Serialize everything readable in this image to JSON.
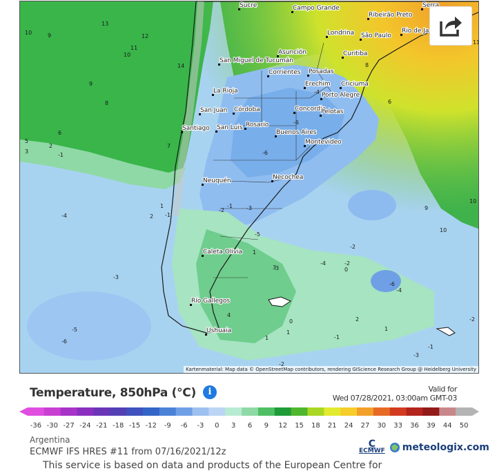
{
  "map": {
    "attribution": "Kartenmaterial: Map data © OpenStreetMap contributors, rendering GIScience Research Group @ Heidelberg University",
    "cities": [
      "Sucre",
      "Campo Grande",
      "Ribeirão Preto",
      "Serra",
      "Londrina",
      "São Paulo",
      "Rio de Ja",
      "Curitiba",
      "Asunción",
      "San Miguel de Tucumán",
      "Corrientes",
      "Posadas",
      "Erechim",
      "Criciuma",
      "Porto Alegre",
      "La Rioja",
      "San Juan",
      "Córdoba",
      "Concordia",
      "Pelotas",
      "Santiago",
      "San Luis",
      "Rosario",
      "Buenos Aires",
      "Montevideo",
      "Neuquén",
      "Necochea",
      "Caleta Olivia",
      "Río Gallegos",
      "Ushuaia"
    ],
    "isotherm_labels": [
      "13",
      "12",
      "11",
      "10",
      "10",
      "9",
      "14",
      "9",
      "8",
      "6",
      "5",
      "3",
      "2",
      "7",
      "-1",
      "-4",
      "2",
      "1",
      "-1",
      "-3",
      "-5",
      "-6",
      "-3",
      "-5",
      "-1",
      "3",
      "1",
      "4",
      "0",
      "2",
      "1",
      "-2",
      "-6",
      "-2",
      "-4",
      "-1",
      "-2",
      "0",
      "-6",
      "-4",
      "-2",
      "1",
      "-1",
      "-3",
      "10",
      "9",
      "10",
      "11",
      "6",
      "8",
      "-4",
      "-6",
      "3",
      "1",
      "-2"
    ]
  },
  "legend": {
    "title": "Temperature, 850hPa (°C)",
    "valid_for": "Valid for",
    "valid_time": "Wed 07/28/2021, 03:00am GMT-03",
    "ticks": [
      "-36",
      "-30",
      "-27",
      "-24",
      "-21",
      "-18",
      "-15",
      "-12",
      "-9",
      "-6",
      "-3",
      "0",
      "3",
      "6",
      "9",
      "12",
      "15",
      "18",
      "21",
      "24",
      "27",
      "30",
      "33",
      "36",
      "39",
      "44",
      "50"
    ],
    "colors": [
      "#e04ee0",
      "#c93fd2",
      "#a733c8",
      "#8a2fbf",
      "#6b35b8",
      "#5440b5",
      "#3f52bd",
      "#3365c8",
      "#4b82d8",
      "#6fa0e6",
      "#9ec0f0",
      "#bcd5f5",
      "#b8ecd2",
      "#8ed9a6",
      "#4fbf63",
      "#1f9c38",
      "#4fb72d",
      "#a9d724",
      "#e2ea30",
      "#f6cd2a",
      "#f2a02a",
      "#e66a25",
      "#d33b20",
      "#b2241c",
      "#921a18",
      "#c8888a",
      "#b4b4b4"
    ]
  },
  "footer": {
    "region": "Argentina",
    "model": "ECMWF IFS HRES #11 from 07/16/2021/12z",
    "ecmwf_logo": "ECMWF",
    "brand": "meteologix.com",
    "disclaimer": "This service is based on data and products of the European Centre for"
  },
  "icons": {
    "share": "share-icon",
    "info": "info-icon"
  }
}
